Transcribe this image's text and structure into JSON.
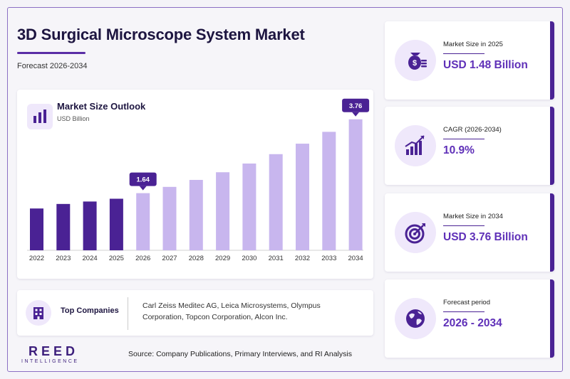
{
  "header": {
    "title": "3D Surgical Microscope System Market",
    "subtitle": "Forecast 2026-2034"
  },
  "chart_data": {
    "type": "bar",
    "title": "Market Size Outlook",
    "ylabel": "USD Billion",
    "categories": [
      "2022",
      "2023",
      "2024",
      "2025",
      "2026",
      "2027",
      "2028",
      "2029",
      "2030",
      "2031",
      "2032",
      "2033",
      "2034"
    ],
    "values": [
      1.2,
      1.33,
      1.4,
      1.48,
      1.64,
      1.82,
      2.02,
      2.24,
      2.49,
      2.76,
      3.06,
      3.4,
      3.76
    ],
    "ylim": [
      0,
      4.0
    ],
    "grid": false,
    "historical_color": "#4a2294",
    "forecast_color": "#c8b6ee",
    "callouts": [
      {
        "category": "2026",
        "label": "1.64"
      },
      {
        "category": "2034",
        "label": "3.76"
      }
    ]
  },
  "companies": {
    "label": "Top Companies",
    "list": "Carl Zeiss Meditec AG, Leica Microsystems, Olympus Corporation, Topcon Corporation, Alcon Inc.",
    "icon": "building-icon"
  },
  "stats": [
    {
      "label": "Market Size in 2025",
      "value": "USD 1.48 Billion",
      "icon": "money-bag-icon"
    },
    {
      "label": "CAGR (2026-2034)",
      "value": "10.9%",
      "icon": "growth-chart-icon"
    },
    {
      "label": "Market Size in 2034",
      "value": "USD 3.76 Billion",
      "icon": "target-icon"
    },
    {
      "label": "Forecast period",
      "value": "2026 - 2034",
      "icon": "globe-icon"
    }
  ],
  "footer": {
    "logo_main": "REED",
    "logo_sub": "INTELLIGENCE",
    "source": "Source: Company Publications, Primary Interviews, and RI Analysis"
  },
  "colors": {
    "accent": "#5f30b8",
    "dark": "#4a2294",
    "light": "#efe8fb"
  }
}
